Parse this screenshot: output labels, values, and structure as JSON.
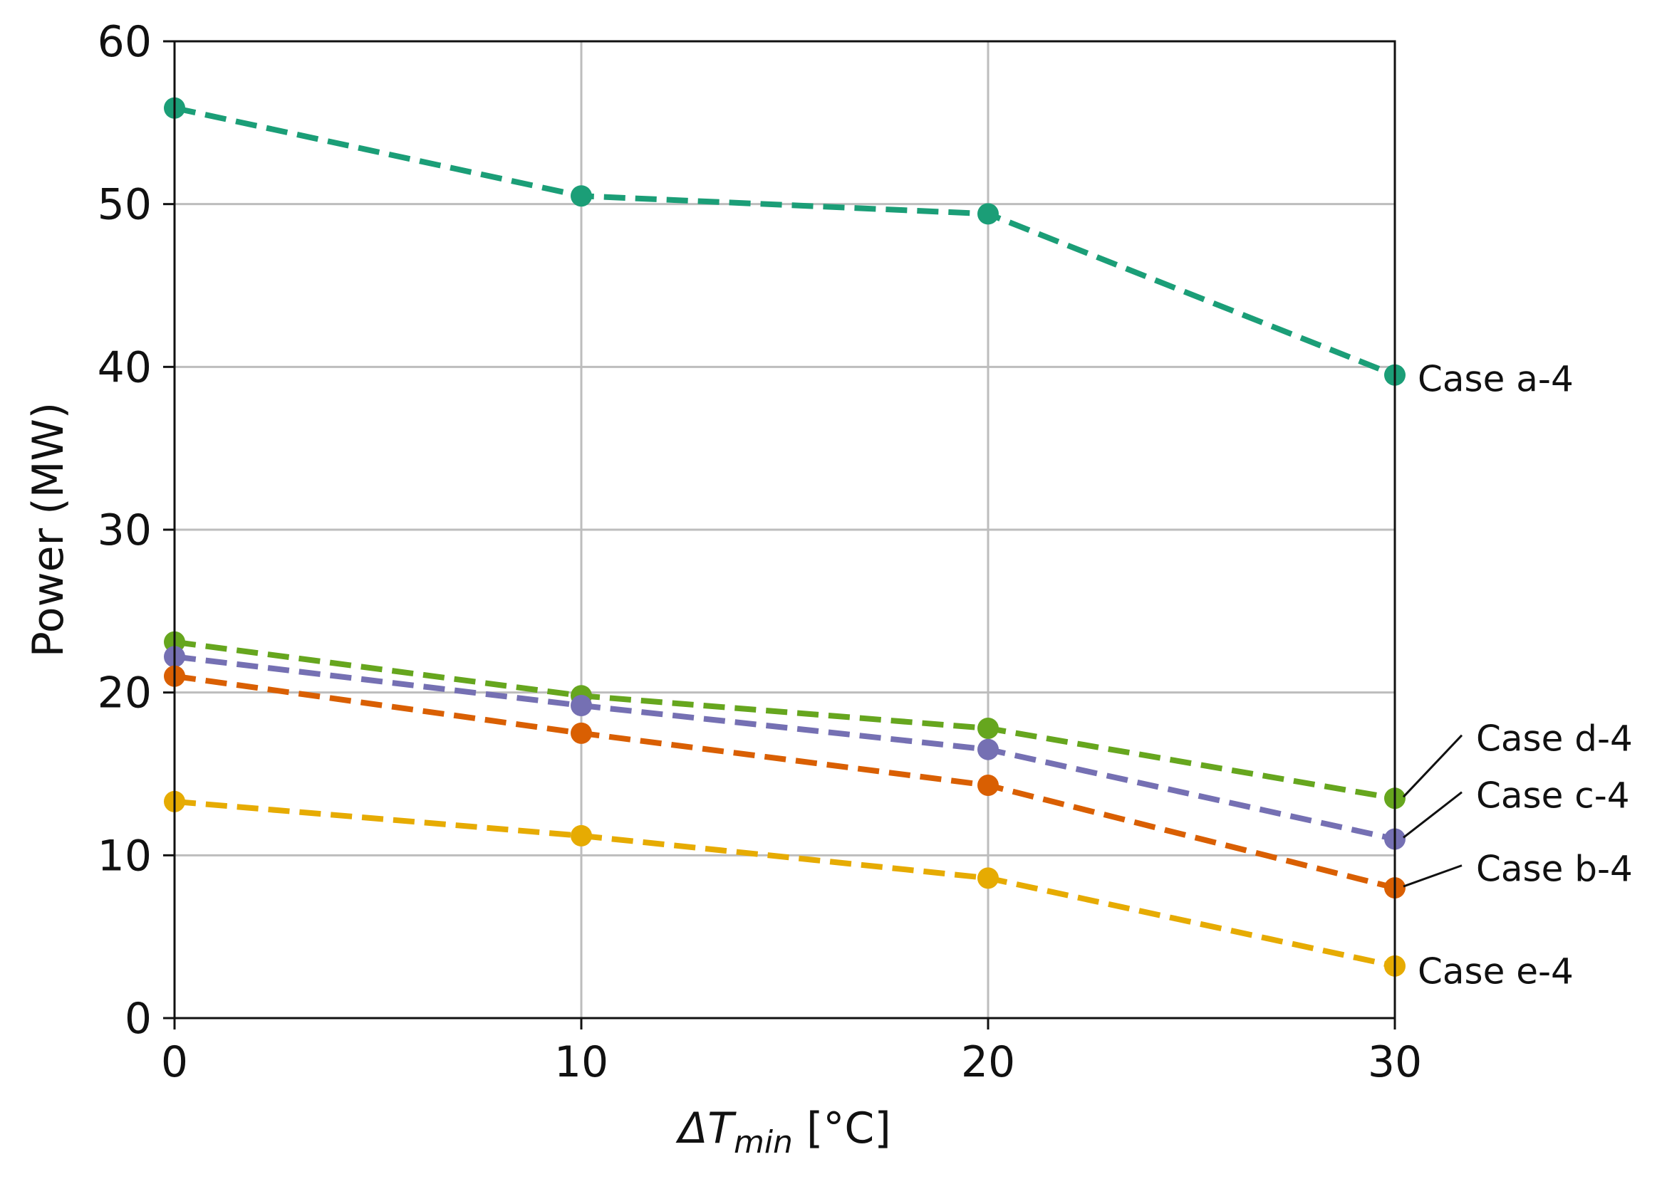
{
  "chart_data": {
    "type": "line",
    "title": "",
    "xlabel": "ΔT",
    "xlabel_subscript": "min",
    "xlabel_unit": " [°C]",
    "ylabel": "Power (MW)",
    "x": [
      0,
      10,
      20,
      30
    ],
    "xlim": [
      0,
      30
    ],
    "ylim": [
      0,
      60
    ],
    "xticks": [
      "0",
      "10",
      "20",
      "30"
    ],
    "yticks": [
      "0",
      "10",
      "20",
      "30",
      "40",
      "50",
      "60"
    ],
    "grid": true,
    "legend": "inline labels at right end of each line",
    "series": [
      {
        "name": "Case a-4",
        "color": "#1b9e77",
        "values": [
          55.9,
          50.5,
          49.4,
          39.5
        ],
        "label_y": 39.3,
        "leader": false
      },
      {
        "name": "Case d-4",
        "color": "#66a61e",
        "values": [
          23.1,
          19.8,
          17.8,
          13.5
        ],
        "label_y": 17.2,
        "leader": true
      },
      {
        "name": "Case c-4",
        "color": "#7570b3",
        "values": [
          22.2,
          19.2,
          16.5,
          11.0
        ],
        "label_y": 13.7,
        "leader": true
      },
      {
        "name": "Case b-4",
        "color": "#d95f02",
        "values": [
          21.0,
          17.5,
          14.3,
          8.0
        ],
        "label_y": 9.2,
        "leader": true
      },
      {
        "name": "Case e-4",
        "color": "#e6ab02",
        "values": [
          13.3,
          11.2,
          8.6,
          3.2
        ],
        "label_y": 2.9,
        "leader": false
      }
    ]
  }
}
